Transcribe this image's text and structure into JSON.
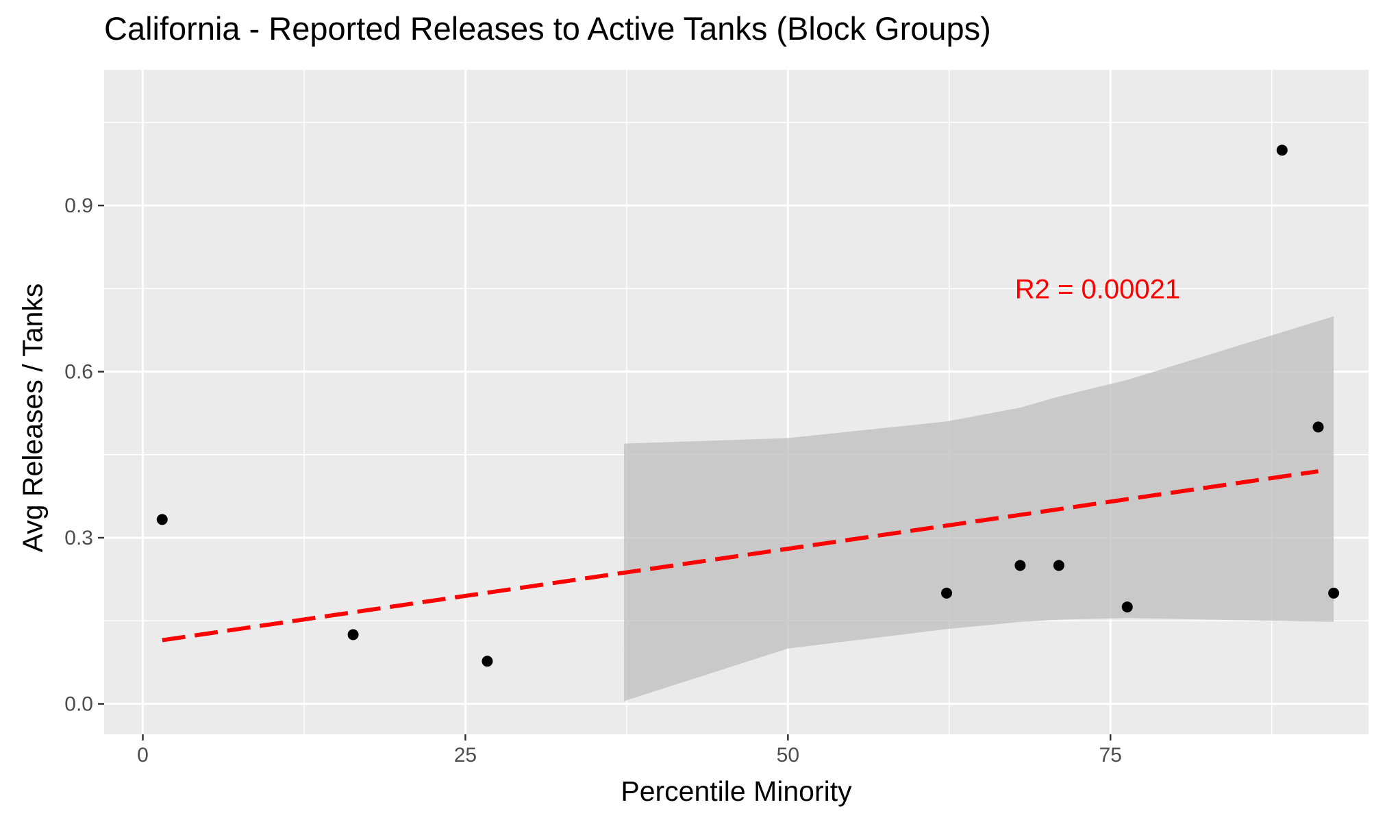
{
  "chart_data": {
    "type": "scatter",
    "title": "California - Reported Releases to Active Tanks (Block Groups)",
    "xlabel": "Percentile Minority",
    "ylabel": "Avg Releases / Tanks",
    "xlim": [
      -3,
      95
    ],
    "ylim": [
      -0.055,
      1.145
    ],
    "x_ticks": [
      0,
      25,
      50,
      75
    ],
    "x_tick_labels": [
      "0",
      "25",
      "50",
      "75"
    ],
    "y_ticks": [
      0.0,
      0.3,
      0.6,
      0.9
    ],
    "y_tick_labels": [
      "0.0",
      "0.3",
      "0.6",
      "0.9"
    ],
    "grid": true,
    "points": {
      "x": [
        1.5,
        16.3,
        26.7,
        62.3,
        68.0,
        71.0,
        76.3,
        88.3,
        91.1,
        92.3
      ],
      "y": [
        0.333,
        0.125,
        0.077,
        0.2,
        0.25,
        0.25,
        0.175,
        1.0,
        0.5,
        0.2
      ],
      "color": "#000000"
    },
    "trend_line": {
      "x": [
        1.5,
        91.1
      ],
      "y": [
        0.115,
        0.42
      ],
      "color": "#ff0000",
      "style": "dashed"
    },
    "confidence_band": {
      "x": [
        37.3,
        50,
        62.3,
        68,
        71,
        76.3,
        92.3
      ],
      "upper": [
        0.47,
        0.48,
        0.51,
        0.535,
        0.555,
        0.585,
        0.7
      ],
      "lower": [
        0.005,
        0.1,
        0.135,
        0.148,
        0.152,
        0.155,
        0.148
      ],
      "color": "#bebebe"
    },
    "annotation": {
      "text": "R2 =  0.00021",
      "x": 74,
      "y": 0.75,
      "color": "#ff0000"
    },
    "colors": {
      "panel": "#ebebeb",
      "grid": "#ffffff"
    }
  }
}
